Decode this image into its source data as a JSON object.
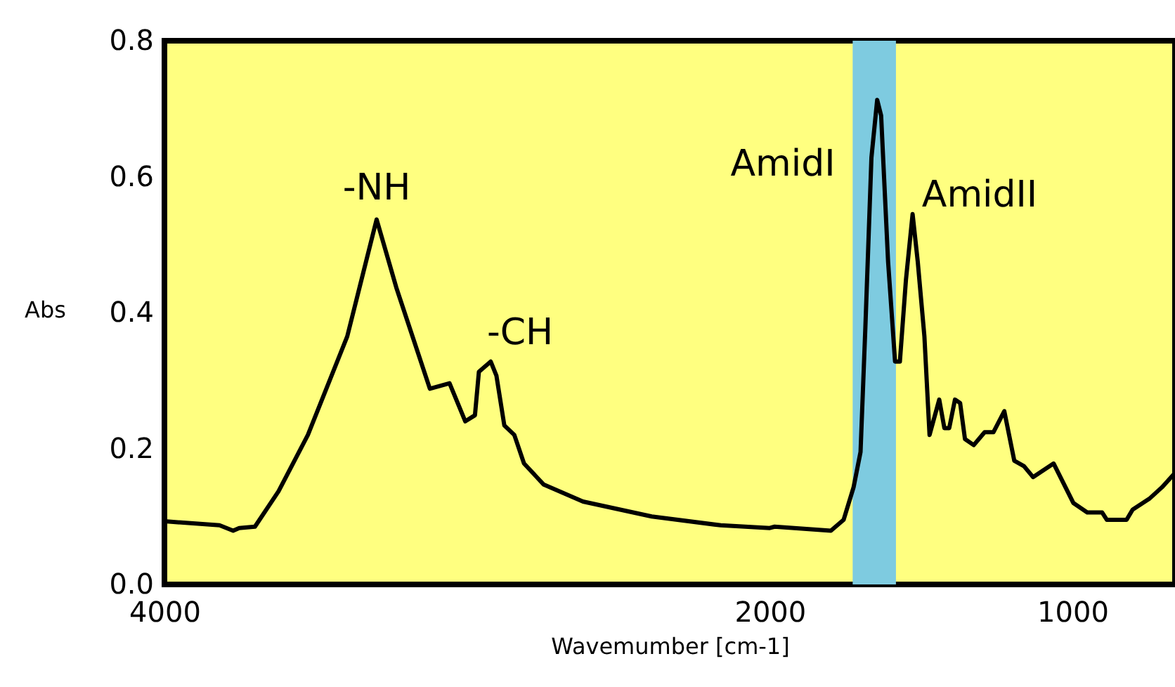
{
  "chart_data": {
    "type": "line",
    "xlabel": "Wavemumber [cm-1]",
    "ylabel": "Abs",
    "x": [
      4000,
      3818,
      3773,
      3753,
      3701,
      3623,
      3526,
      3396,
      3299,
      3234,
      3123,
      3058,
      3006,
      2974,
      2961,
      2922,
      2903,
      2877,
      2844,
      2812,
      2747,
      2617,
      2390,
      2162,
      2000,
      1984,
      1798,
      1756,
      1723,
      1700,
      1684,
      1664,
      1645,
      1632,
      1609,
      1586,
      1570,
      1550,
      1528,
      1511,
      1489,
      1472,
      1440,
      1423,
      1407,
      1388,
      1371,
      1355,
      1326,
      1290,
      1261,
      1225,
      1192,
      1160,
      1130,
      1062,
      997,
      951,
      902,
      886,
      821,
      801,
      746,
      704,
      661
    ],
    "values": [
      0.093,
      0.087,
      0.079,
      0.083,
      0.085,
      0.137,
      0.22,
      0.365,
      0.537,
      0.437,
      0.288,
      0.296,
      0.24,
      0.249,
      0.313,
      0.328,
      0.307,
      0.234,
      0.22,
      0.178,
      0.147,
      0.122,
      0.1,
      0.087,
      0.083,
      0.085,
      0.079,
      0.095,
      0.143,
      0.195,
      0.379,
      0.628,
      0.713,
      0.69,
      0.475,
      0.328,
      0.328,
      0.448,
      0.545,
      0.475,
      0.365,
      0.22,
      0.272,
      0.23,
      0.23,
      0.272,
      0.267,
      0.214,
      0.205,
      0.224,
      0.224,
      0.255,
      0.182,
      0.174,
      0.158,
      0.178,
      0.12,
      0.106,
      0.106,
      0.095,
      0.095,
      0.11,
      0.126,
      0.143,
      0.164
    ],
    "color": "#000000",
    "xlim": [
      4000,
      661
    ],
    "xticks": [
      4000,
      2000,
      1000
    ],
    "ylim": [
      0,
      0.8
    ],
    "yticks": [
      {
        "value": 0,
        "label": "0.0"
      },
      0.2,
      0.4,
      0.6,
      0.8
    ],
    "bands": [
      {
        "axis": "x",
        "from": 1726,
        "to": 1583,
        "color": "#7ecbe0"
      }
    ],
    "annotations": [
      "-NH",
      "-CH",
      "AmidI",
      "AmidII"
    ]
  }
}
